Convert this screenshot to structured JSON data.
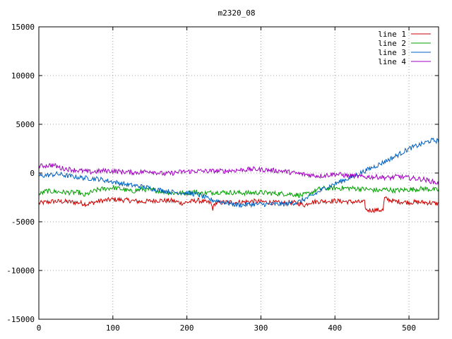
{
  "chart_data": {
    "type": "line",
    "title": "m2320_08",
    "xlabel": "",
    "ylabel": "",
    "xlim": [
      0,
      540
    ],
    "ylim": [
      -15000,
      15000
    ],
    "xticks": [
      0,
      100,
      200,
      300,
      400,
      500
    ],
    "yticks": [
      -15000,
      -10000,
      -5000,
      0,
      5000,
      10000,
      15000
    ],
    "grid": true,
    "legend_position": "top-right",
    "series": [
      {
        "name": "line 1",
        "color": "#cc0000",
        "points": [
          [
            0,
            -3100
          ],
          [
            20,
            -2900
          ],
          [
            40,
            -2950
          ],
          [
            55,
            -3050
          ],
          [
            65,
            -3200
          ],
          [
            80,
            -2900
          ],
          [
            100,
            -2700
          ],
          [
            120,
            -2800
          ],
          [
            140,
            -2950
          ],
          [
            160,
            -2800
          ],
          [
            180,
            -2850
          ],
          [
            195,
            -3100
          ],
          [
            200,
            -3000
          ],
          [
            215,
            -2800
          ],
          [
            225,
            -3000
          ],
          [
            232,
            -3050
          ],
          [
            235,
            -3650
          ],
          [
            238,
            -3100
          ],
          [
            250,
            -3000
          ],
          [
            270,
            -3000
          ],
          [
            290,
            -2900
          ],
          [
            310,
            -3000
          ],
          [
            330,
            -3100
          ],
          [
            340,
            -3000
          ],
          [
            350,
            -3100
          ],
          [
            360,
            -3300
          ],
          [
            365,
            -3000
          ],
          [
            380,
            -2900
          ],
          [
            400,
            -2850
          ],
          [
            420,
            -2950
          ],
          [
            440,
            -3000
          ],
          [
            442,
            -3800
          ],
          [
            455,
            -3800
          ],
          [
            465,
            -3800
          ],
          [
            467,
            -2600
          ],
          [
            480,
            -2900
          ],
          [
            500,
            -3000
          ],
          [
            520,
            -3000
          ],
          [
            540,
            -3150
          ]
        ]
      },
      {
        "name": "line 2",
        "color": "#00a000",
        "points": [
          [
            0,
            -2200
          ],
          [
            10,
            -1850
          ],
          [
            20,
            -1900
          ],
          [
            40,
            -2000
          ],
          [
            55,
            -2000
          ],
          [
            60,
            -2350
          ],
          [
            70,
            -2000
          ],
          [
            80,
            -1700
          ],
          [
            100,
            -1500
          ],
          [
            115,
            -1700
          ],
          [
            125,
            -1900
          ],
          [
            140,
            -1650
          ],
          [
            160,
            -1800
          ],
          [
            180,
            -2050
          ],
          [
            200,
            -2050
          ],
          [
            210,
            -1900
          ],
          [
            220,
            -2100
          ],
          [
            240,
            -1950
          ],
          [
            260,
            -2000
          ],
          [
            280,
            -2050
          ],
          [
            300,
            -2000
          ],
          [
            320,
            -2100
          ],
          [
            340,
            -2150
          ],
          [
            355,
            -2300
          ],
          [
            365,
            -2100
          ],
          [
            380,
            -1600
          ],
          [
            400,
            -1550
          ],
          [
            420,
            -1550
          ],
          [
            440,
            -1650
          ],
          [
            460,
            -1800
          ],
          [
            470,
            -1650
          ],
          [
            480,
            -1800
          ],
          [
            500,
            -1700
          ],
          [
            520,
            -1600
          ],
          [
            540,
            -1750
          ]
        ]
      },
      {
        "name": "line 3",
        "color": "#0060c0",
        "points": [
          [
            0,
            -300
          ],
          [
            15,
            -200
          ],
          [
            25,
            -100
          ],
          [
            40,
            -300
          ],
          [
            60,
            -500
          ],
          [
            80,
            -600
          ],
          [
            100,
            -900
          ],
          [
            120,
            -1200
          ],
          [
            140,
            -1400
          ],
          [
            160,
            -1700
          ],
          [
            180,
            -1950
          ],
          [
            200,
            -2050
          ],
          [
            215,
            -2200
          ],
          [
            230,
            -2700
          ],
          [
            250,
            -3000
          ],
          [
            270,
            -3300
          ],
          [
            290,
            -3200
          ],
          [
            310,
            -3200
          ],
          [
            330,
            -3200
          ],
          [
            350,
            -3000
          ],
          [
            370,
            -2300
          ],
          [
            385,
            -1600
          ],
          [
            400,
            -1100
          ],
          [
            420,
            -500
          ],
          [
            440,
            200
          ],
          [
            460,
            900
          ],
          [
            480,
            1650
          ],
          [
            500,
            2500
          ],
          [
            520,
            3050
          ],
          [
            530,
            3350
          ],
          [
            540,
            3300
          ]
        ]
      },
      {
        "name": "line 4",
        "color": "#a000c0",
        "points": [
          [
            0,
            700
          ],
          [
            15,
            800
          ],
          [
            20,
            800
          ],
          [
            30,
            500
          ],
          [
            50,
            300
          ],
          [
            70,
            100
          ],
          [
            90,
            250
          ],
          [
            110,
            150
          ],
          [
            130,
            50
          ],
          [
            150,
            200
          ],
          [
            170,
            -100
          ],
          [
            190,
            100
          ],
          [
            210,
            200
          ],
          [
            230,
            200
          ],
          [
            250,
            200
          ],
          [
            270,
            300
          ],
          [
            290,
            400
          ],
          [
            310,
            300
          ],
          [
            330,
            200
          ],
          [
            345,
            0
          ],
          [
            365,
            -200
          ],
          [
            380,
            -300
          ],
          [
            400,
            -100
          ],
          [
            420,
            -300
          ],
          [
            440,
            -400
          ],
          [
            460,
            -400
          ],
          [
            475,
            -500
          ],
          [
            485,
            -350
          ],
          [
            500,
            -500
          ],
          [
            520,
            -650
          ],
          [
            540,
            -1050
          ]
        ]
      }
    ]
  }
}
